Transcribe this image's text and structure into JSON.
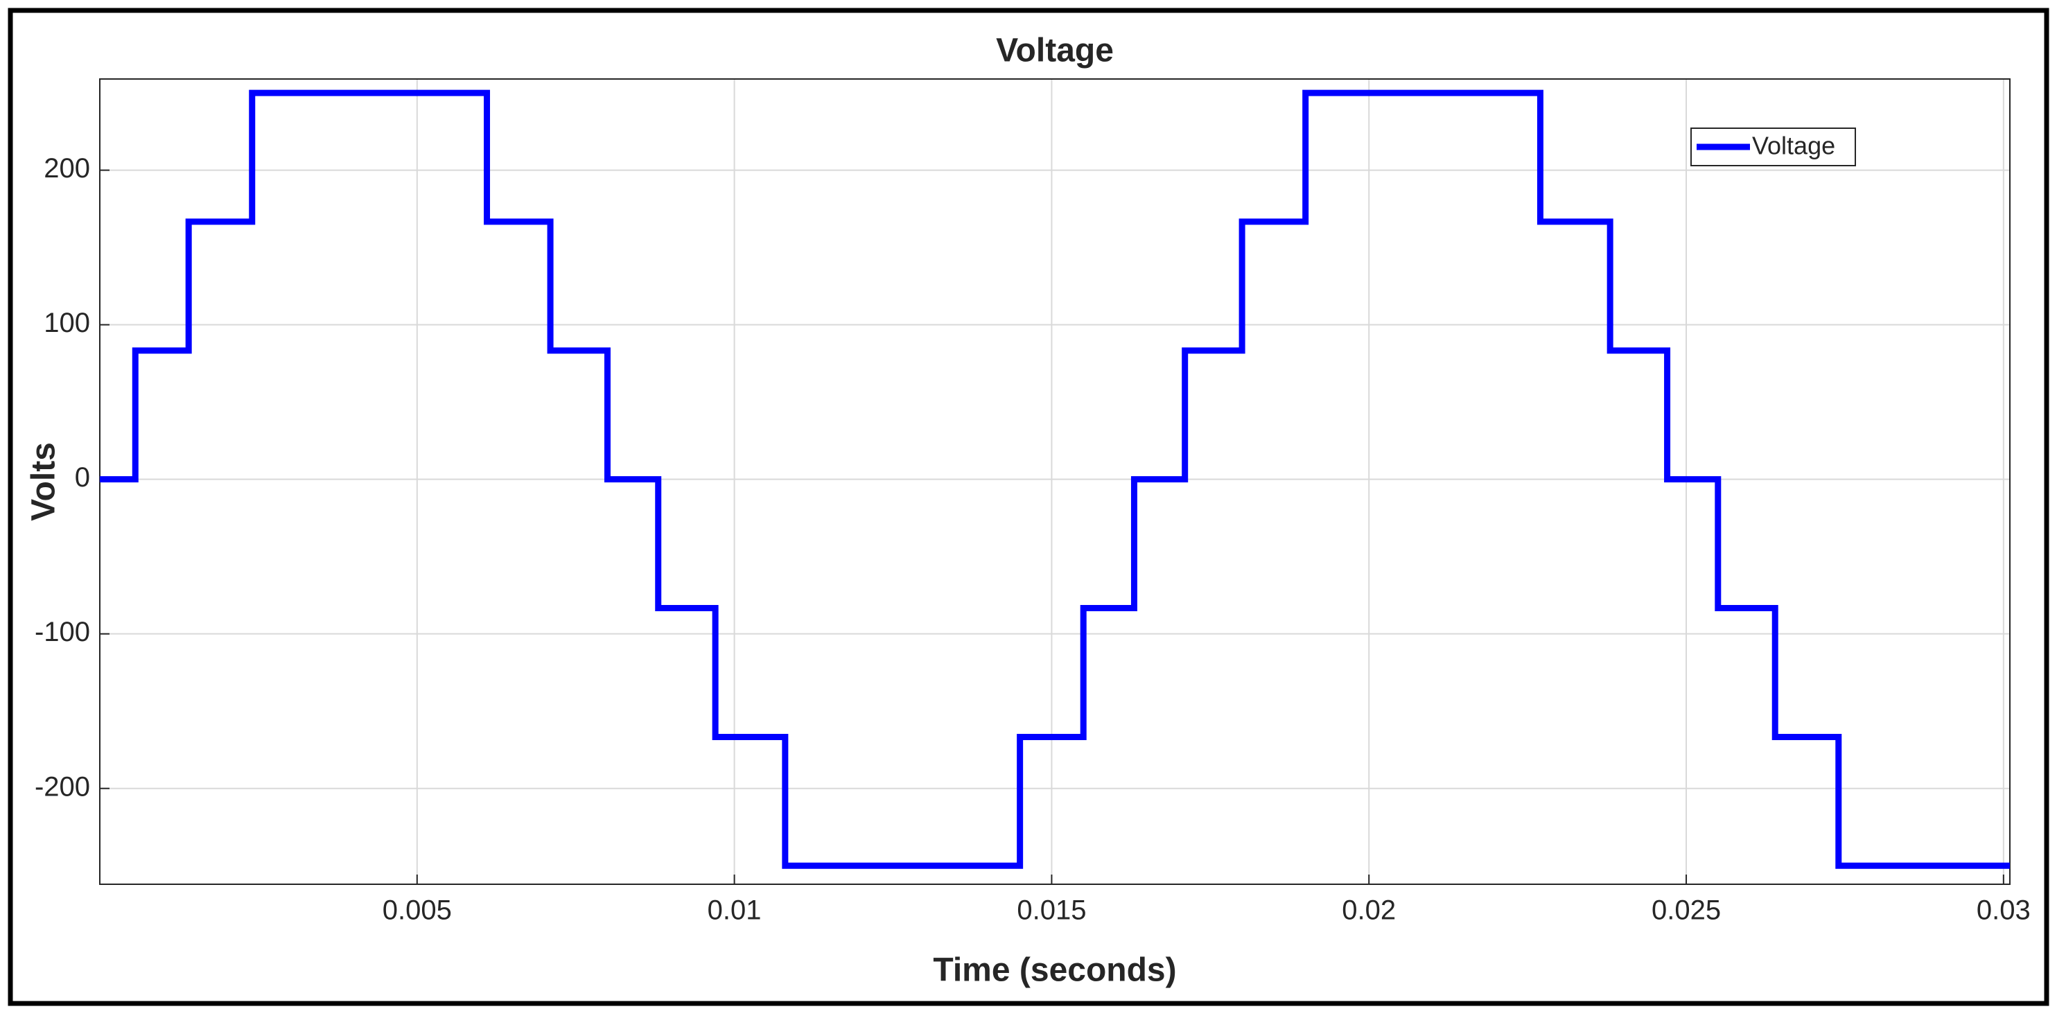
{
  "chart_data": {
    "type": "line",
    "title": "Voltage",
    "x_label": "Time (seconds)",
    "y_label": "Volts",
    "x": [
      0,
      0.00056,
      0.00056,
      0.0014,
      0.0014,
      0.0024,
      0.0024,
      0.0061,
      0.0061,
      0.0071,
      0.0071,
      0.008,
      0.008,
      0.0088,
      0.0088,
      0.0097,
      0.0097,
      0.0108,
      0.0108,
      0.0145,
      0.0145,
      0.0155,
      0.0155,
      0.0163,
      0.0163,
      0.0171,
      0.0171,
      0.018,
      0.018,
      0.019,
      0.019,
      0.0227,
      0.0227,
      0.0238,
      0.0238,
      0.0247,
      0.0247,
      0.0255,
      0.0255,
      0.0264,
      0.0264,
      0.0274,
      0.0274,
      0.0301
    ],
    "series": [
      {
        "name": "Voltage",
        "color": "#0000ff",
        "values": [
          0,
          0,
          83.3,
          83.3,
          166.7,
          166.7,
          250,
          250,
          166.7,
          166.7,
          83.3,
          83.3,
          0,
          0,
          -83.3,
          -83.3,
          -166.7,
          -166.7,
          -250,
          -250,
          -166.7,
          -166.7,
          -83.3,
          -83.3,
          0,
          0,
          83.3,
          83.3,
          166.7,
          166.7,
          250,
          250,
          166.7,
          166.7,
          83.3,
          83.3,
          0,
          0,
          -83.3,
          -83.3,
          -166.7,
          -166.7,
          -250,
          -250
        ]
      }
    ],
    "xlim": [
      0,
      0.0301
    ],
    "ylim": [
      -262,
      259
    ],
    "xticks": [
      0.005,
      0.01,
      0.015,
      0.02,
      0.025,
      0.03
    ],
    "yticks": [
      -200,
      -100,
      0,
      100,
      200
    ],
    "grid": true,
    "legend": "northeast"
  }
}
